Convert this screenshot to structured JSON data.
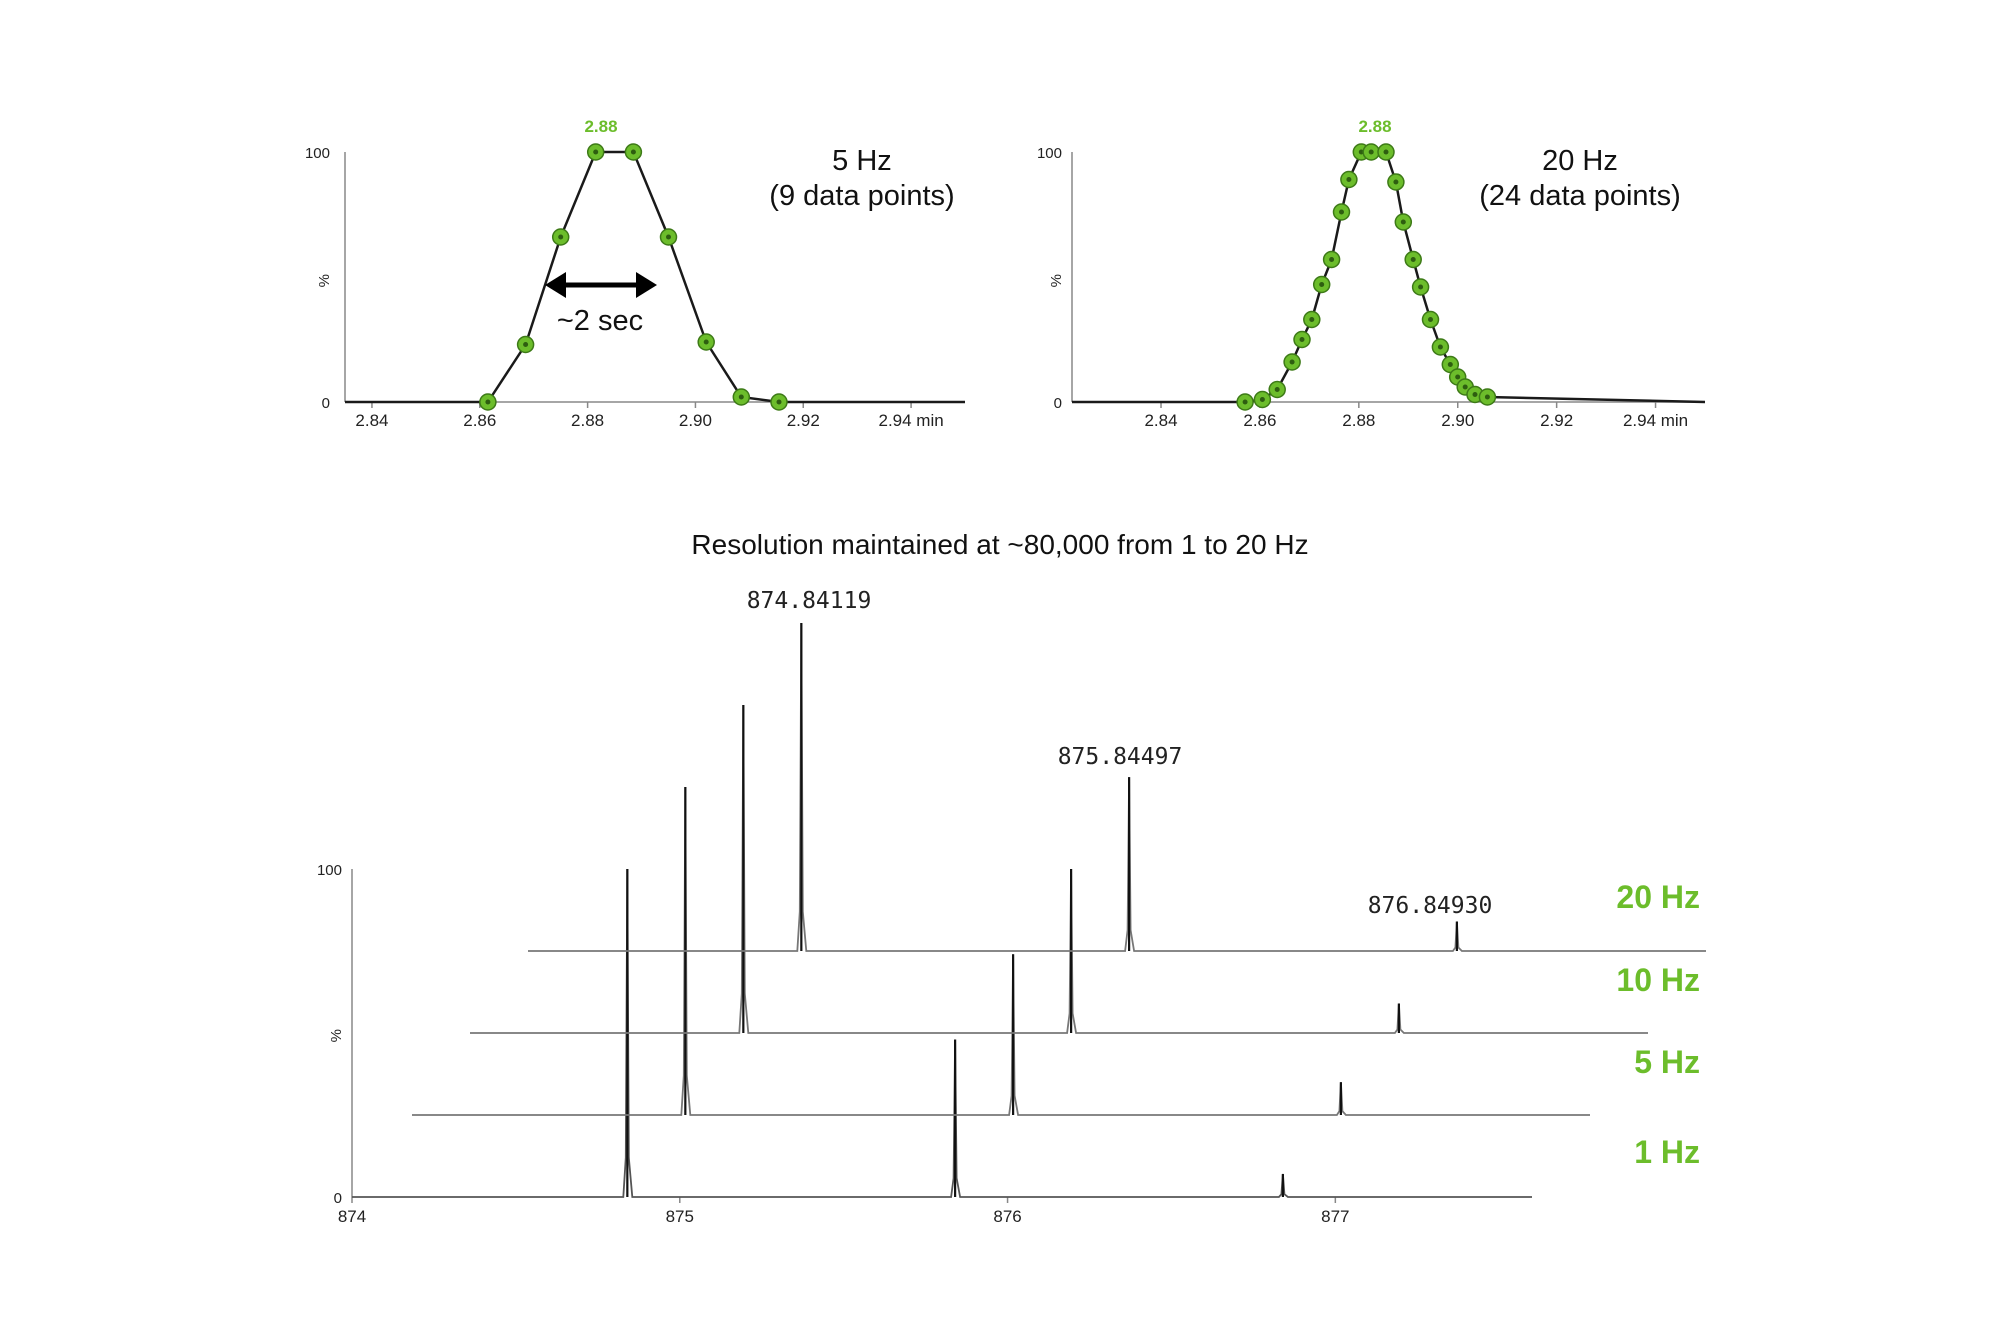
{
  "chart_data": [
    {
      "type": "line",
      "rate_label": "5 Hz",
      "points_label": "(9 data points)",
      "peak_label": "2.88",
      "annotation": "~2 sec",
      "y_ticks": [
        "100",
        "%",
        "0"
      ],
      "x_ticks": [
        "2.84",
        "2.86",
        "2.88",
        "2.90",
        "2.92",
        "2.94 min"
      ],
      "xlim": [
        2.835,
        2.95
      ],
      "ylim": [
        0,
        100
      ],
      "x": [
        2.8615,
        2.8685,
        2.875,
        2.8815,
        2.8885,
        2.895,
        2.902,
        2.9085,
        2.9155
      ],
      "y": [
        0,
        23,
        66,
        100,
        100,
        66,
        24,
        2,
        0
      ],
      "marker_color": "#6cbd2b"
    },
    {
      "type": "line",
      "rate_label": "20 Hz",
      "points_label": "(24 data points)",
      "peak_label": "2.88",
      "y_ticks": [
        "100",
        "%",
        "0"
      ],
      "x_ticks": [
        "2.84",
        "2.86",
        "2.88",
        "2.90",
        "2.92",
        "2.94 min"
      ],
      "xlim": [
        2.822,
        2.95
      ],
      "ylim": [
        0,
        100
      ],
      "x": [
        2.857,
        2.8605,
        2.8635,
        2.8665,
        2.8685,
        2.8705,
        2.8725,
        2.8745,
        2.8765,
        2.878,
        2.8805,
        2.8825,
        2.8855,
        2.8875,
        2.889,
        2.891,
        2.8925,
        2.8945,
        2.8965,
        2.8985,
        2.9,
        2.9015,
        2.9035,
        2.906
      ],
      "y": [
        0,
        1,
        5,
        16,
        25,
        33,
        47,
        57,
        76,
        89,
        100,
        100,
        100,
        88,
        72,
        57,
        46,
        33,
        22,
        15,
        10,
        6,
        3,
        2
      ],
      "marker_color": "#6cbd2b"
    },
    {
      "type": "line",
      "title": "Resolution maintained at ~80,000 from 1 to 20 Hz",
      "y_ticks": [
        "100",
        "%",
        "0"
      ],
      "x_ticks": [
        "874",
        "875",
        "876",
        "877"
      ],
      "xlim": [
        874,
        877.6
      ],
      "peak_annotations": [
        "874.84119",
        "875.84497",
        "876.84930"
      ],
      "series": [
        {
          "name": "1 Hz",
          "peaks": [
            {
              "mz": 874.84,
              "height": 100
            },
            {
              "mz": 875.84,
              "height": 48
            },
            {
              "mz": 876.84,
              "height": 7
            }
          ]
        },
        {
          "name": "5 Hz",
          "peaks": [
            {
              "mz": 874.84,
              "height": 100
            },
            {
              "mz": 875.84,
              "height": 49
            },
            {
              "mz": 876.84,
              "height": 10
            }
          ]
        },
        {
          "name": "10 Hz",
          "peaks": [
            {
              "mz": 874.84,
              "height": 100
            },
            {
              "mz": 875.84,
              "height": 50
            },
            {
              "mz": 876.84,
              "height": 9
            }
          ]
        },
        {
          "name": "20 Hz",
          "peaks": [
            {
              "mz": 874.84,
              "height": 100
            },
            {
              "mz": 875.84,
              "height": 53
            },
            {
              "mz": 876.84,
              "height": 9
            }
          ]
        }
      ],
      "label_color": "#6cbd2b"
    }
  ]
}
